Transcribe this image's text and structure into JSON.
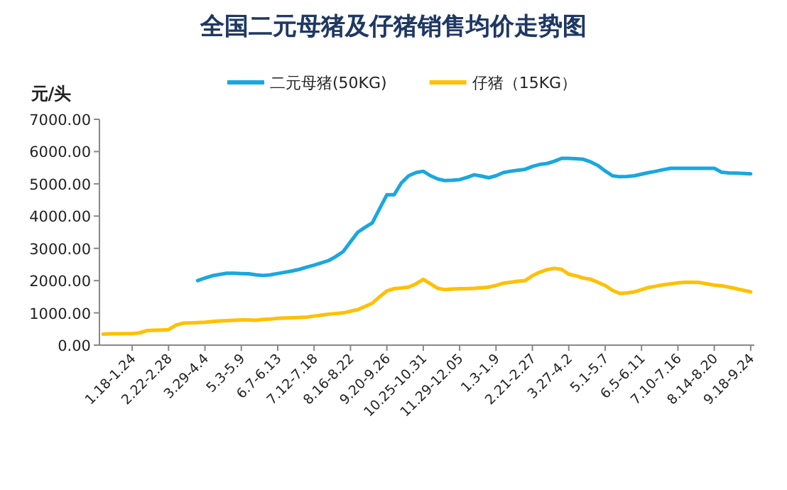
{
  "chart_data": {
    "type": "line",
    "title": "全国二元母猪及仔猪销售均价走势图",
    "ylabel": "元/头",
    "categories": [
      null,
      null,
      null,
      null,
      "1.18-1.24",
      null,
      null,
      null,
      null,
      "2.22-2.28",
      null,
      null,
      null,
      null,
      "3.29-4.4",
      null,
      null,
      null,
      null,
      "5.3-5.9",
      null,
      null,
      null,
      null,
      "6.7-6.13",
      null,
      null,
      null,
      null,
      "7.12-7.18",
      null,
      null,
      null,
      null,
      "8.16-8.22",
      null,
      null,
      null,
      null,
      "9.20-9.26",
      null,
      null,
      null,
      null,
      "10.25-10.31",
      null,
      null,
      null,
      null,
      "11.29-12.05",
      null,
      null,
      null,
      null,
      "1.3-1.9",
      null,
      null,
      null,
      null,
      "2.21-2.27",
      null,
      null,
      null,
      null,
      "3.27-4.2",
      null,
      null,
      null,
      null,
      "5.1-5.7",
      null,
      null,
      null,
      null,
      "6.5-6.11",
      null,
      null,
      null,
      null,
      "7.10-7.16",
      null,
      null,
      null,
      null,
      "8.14-8.20",
      null,
      null,
      null,
      null,
      "9.18-9.24"
    ],
    "series": [
      {
        "name": "二元母猪(50KG)",
        "color": "#1aa7e0",
        "values": [
          null,
          null,
          null,
          null,
          null,
          null,
          null,
          null,
          null,
          null,
          null,
          null,
          null,
          2000,
          2080,
          2150,
          2190,
          2230,
          2230,
          2220,
          2210,
          2180,
          2160,
          2180,
          2220,
          2260,
          2300,
          2350,
          2420,
          2480,
          2550,
          2620,
          2750,
          2900,
          3200,
          3500,
          3650,
          3790,
          4230,
          4660,
          4660,
          5030,
          5250,
          5350,
          5390,
          5250,
          5150,
          5100,
          5110,
          5130,
          5200,
          5280,
          5240,
          5190,
          5250,
          5350,
          5390,
          5420,
          5450,
          5540,
          5600,
          5630,
          5700,
          5790,
          5790,
          5780,
          5760,
          5680,
          5570,
          5400,
          5250,
          5220,
          5230,
          5250,
          5300,
          5350,
          5390,
          5440,
          5480,
          5480,
          5480,
          5480,
          5480,
          5480,
          5480,
          5360,
          5340,
          5330,
          5320,
          5310
        ]
      },
      {
        "name": "仔猪（15KG）",
        "color": "#ffc000",
        "values": [
          340,
          350,
          350,
          360,
          360,
          380,
          450,
          460,
          470,
          480,
          620,
          680,
          690,
          700,
          710,
          730,
          750,
          760,
          770,
          780,
          780,
          770,
          800,
          810,
          830,
          840,
          850,
          860,
          870,
          900,
          930,
          960,
          980,
          1000,
          1050,
          1100,
          1200,
          1300,
          1500,
          1680,
          1750,
          1770,
          1800,
          1900,
          2040,
          1900,
          1760,
          1720,
          1740,
          1750,
          1750,
          1760,
          1780,
          1800,
          1850,
          1920,
          1950,
          1980,
          2000,
          2150,
          2260,
          2340,
          2380,
          2350,
          2200,
          2150,
          2080,
          2040,
          1950,
          1850,
          1700,
          1600,
          1620,
          1650,
          1720,
          1790,
          1830,
          1870,
          1900,
          1930,
          1950,
          1950,
          1940,
          1900,
          1860,
          1840,
          1800,
          1750,
          1700,
          1650
        ]
      }
    ],
    "ylim": [
      0,
      7000
    ],
    "yticks": [
      {
        "value": 0,
        "label": "0.00"
      },
      {
        "value": 1000,
        "label": "1000.00"
      },
      {
        "value": 2000,
        "label": "2000.00"
      },
      {
        "value": 3000,
        "label": "3000.00"
      },
      {
        "value": 4000,
        "label": "4000.00"
      },
      {
        "value": 5000,
        "label": "5000.00"
      },
      {
        "value": 6000,
        "label": "6000.00"
      },
      {
        "value": 7000,
        "label": "7000.00"
      }
    ],
    "legend": "top",
    "grid": false,
    "marker": "none",
    "line_style": "solid"
  }
}
